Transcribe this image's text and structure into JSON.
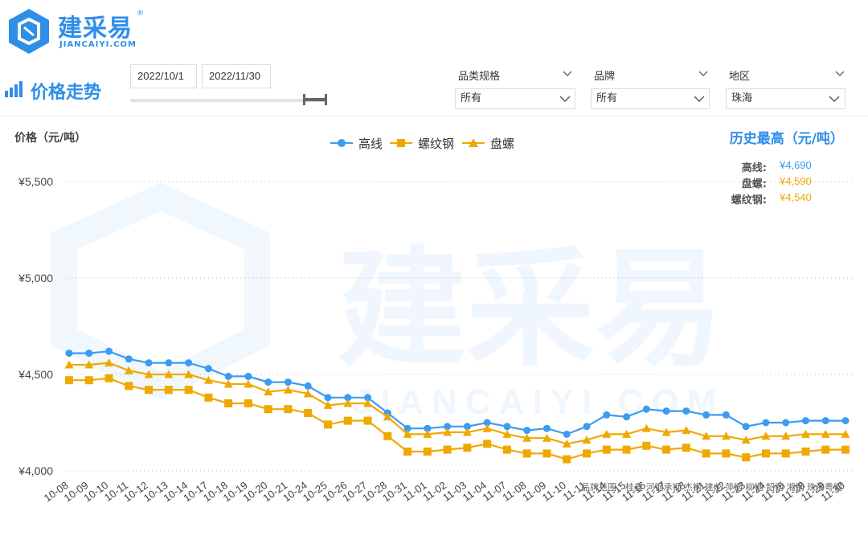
{
  "brand": {
    "name_cn": "建采易",
    "reg_mark": "®",
    "name_en": "JIANCAIYI.COM",
    "color": "#2f8ee8"
  },
  "page": {
    "title": "价格走势",
    "title_icon": "bar-chart-icon"
  },
  "date_range": {
    "start": "2022/10/1",
    "end": "2022/11/30"
  },
  "filters": [
    {
      "label": "品类规格",
      "value": "所有"
    },
    {
      "label": "品牌",
      "value": "所有"
    },
    {
      "label": "地区",
      "value": "珠海"
    }
  ],
  "history_high": {
    "title": "历史最高（元/吨）",
    "items": [
      {
        "label": "高线:",
        "value": "¥4,690",
        "color": "#3b9cf0"
      },
      {
        "label": "盘螺:",
        "value": "¥4,590",
        "color": "#f0a800"
      },
      {
        "label": "螺纹钢:",
        "value": "¥4,540",
        "color": "#f0a800"
      }
    ]
  },
  "brand_range": "品牌范围：桂鑫  河钢承钢  杰钢  建龙  萍钢  柳钢  韶钢  湘钢  珠海粤钢",
  "chart_data": {
    "type": "line",
    "ylabel": "价格（元/吨）",
    "ylim": [
      4000,
      5500
    ],
    "yticks": [
      4000,
      4500,
      5000,
      5500
    ],
    "ytick_labels": [
      "¥4,000",
      "¥4,500",
      "¥5,000",
      "¥5,500"
    ],
    "grid": "horizontal-dotted",
    "legend_position": "top-center",
    "x": [
      "10-08",
      "10-09",
      "10-10",
      "10-11",
      "10-12",
      "10-13",
      "10-14",
      "10-17",
      "10-18",
      "10-19",
      "10-20",
      "10-21",
      "10-24",
      "10-25",
      "10-26",
      "10-27",
      "10-28",
      "10-31",
      "11-01",
      "11-02",
      "11-03",
      "11-04",
      "11-07",
      "11-08",
      "11-09",
      "11-10",
      "11-11",
      "11-14",
      "11-15",
      "11-16",
      "11-17",
      "11-18",
      "11-21",
      "11-22",
      "11-23",
      "11-24",
      "11-25",
      "11-28",
      "11-29",
      "11-30"
    ],
    "series": [
      {
        "name": "高线",
        "color": "#3b9cf0",
        "marker": "circle",
        "values": [
          4610,
          4610,
          4620,
          4580,
          4560,
          4560,
          4560,
          4530,
          4490,
          4490,
          4460,
          4460,
          4440,
          4380,
          4380,
          4380,
          4300,
          4220,
          4220,
          4230,
          4230,
          4250,
          4230,
          4210,
          4220,
          4190,
          4230,
          4290,
          4280,
          4320,
          4310,
          4310,
          4290,
          4290,
          4230,
          4250,
          4250,
          4260,
          4260,
          4260
        ]
      },
      {
        "name": "螺纹钢",
        "color": "#f0a800",
        "marker": "square",
        "values": [
          4470,
          4470,
          4480,
          4440,
          4420,
          4420,
          4420,
          4380,
          4350,
          4350,
          4320,
          4320,
          4300,
          4240,
          4260,
          4260,
          4180,
          4100,
          4100,
          4110,
          4120,
          4140,
          4110,
          4090,
          4090,
          4060,
          4090,
          4110,
          4110,
          4130,
          4110,
          4120,
          4090,
          4090,
          4070,
          4090,
          4090,
          4100,
          4110,
          4110
        ]
      },
      {
        "name": "盘螺",
        "color": "#f0a800",
        "marker": "triangle",
        "values": [
          4550,
          4550,
          4560,
          4520,
          4500,
          4500,
          4500,
          4470,
          4450,
          4450,
          4410,
          4420,
          4400,
          4340,
          4350,
          4350,
          4280,
          4190,
          4190,
          4200,
          4200,
          4220,
          4190,
          4170,
          4170,
          4140,
          4160,
          4190,
          4190,
          4220,
          4200,
          4210,
          4180,
          4180,
          4160,
          4180,
          4180,
          4190,
          4190,
          4190
        ]
      }
    ]
  }
}
